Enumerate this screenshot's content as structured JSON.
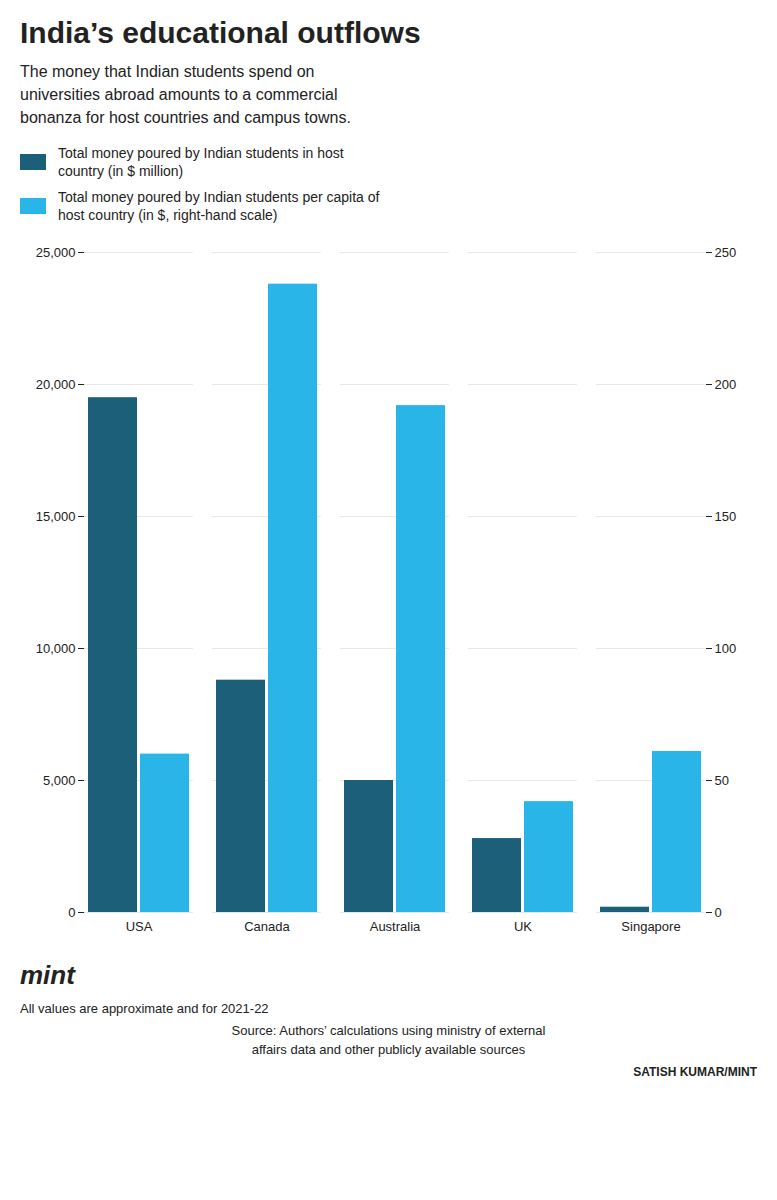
{
  "chart_data": {
    "type": "bar",
    "title": "India’s educational outflows",
    "subtitle": "The money that Indian students spend on\nuniversities abroad amounts to a commercial\nbonanza for host countries and campus towns.",
    "categories": [
      "USA",
      "Canada",
      "Australia",
      "UK",
      "Singapore"
    ],
    "series": [
      {
        "name": "Total money poured by Indian students in host\ncountry (in $ million)",
        "color": "#1c5f78",
        "values": [
          19500,
          8800,
          5000,
          2800,
          200
        ]
      },
      {
        "name": "Total money poured by Indian students per capita of\nhost country (in $, right-hand scale)",
        "color": "#29b5e8",
        "values": [
          60,
          238,
          192,
          42,
          61
        ],
        "axis": "y2"
      }
    ],
    "ylim": [
      0,
      25000
    ],
    "yticks": [
      0,
      {
        "value": 5000,
        "label": "5,000"
      },
      {
        "value": 10000,
        "label": "10,000"
      },
      {
        "value": 15000,
        "label": "15,000"
      },
      {
        "value": 20000,
        "label": "20,000"
      },
      {
        "value": 25000,
        "label": "25,000"
      }
    ],
    "y2lim": [
      0,
      250
    ],
    "y2ticks": [
      0,
      50,
      100,
      150,
      200,
      250
    ],
    "grid": true,
    "legend": "upper left",
    "annotations": [
      "mint",
      "All values are approximate and for 2021-22",
      "Source: Authors’ calculations using ministry of external\naffairs data and other publicly available sources",
      "SATISH KUMAR/MINT"
    ]
  }
}
